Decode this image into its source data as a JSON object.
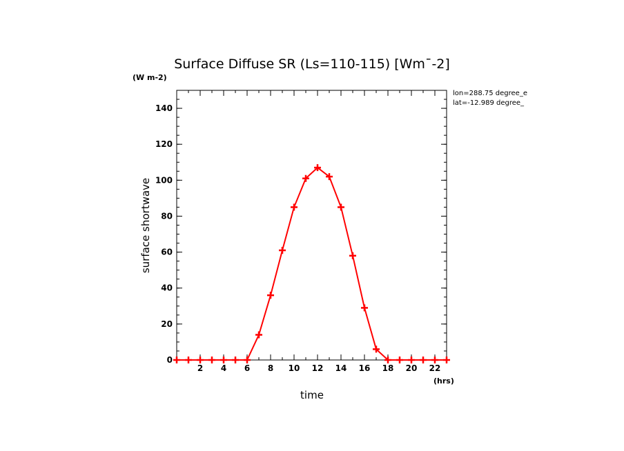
{
  "chart_data": {
    "type": "line",
    "title": "Surface Diffuse SR (Ls=110-115) [Wm¯-2]",
    "ylabel_units": "(W m-2)",
    "ylabel": "surface shortwave",
    "xlabel": "time",
    "xlabel_units": "(hrs)",
    "annotations": [
      "lon=288.75 degree_e",
      "lat=-12.989 degree_"
    ],
    "xlim": [
      0,
      23
    ],
    "ylim": [
      0,
      150
    ],
    "x_ticks": [
      2,
      4,
      6,
      8,
      10,
      12,
      14,
      16,
      18,
      20,
      22
    ],
    "y_ticks": [
      0,
      20,
      40,
      60,
      80,
      100,
      120,
      140
    ],
    "grid": false,
    "series": [
      {
        "color": "#ff0000",
        "marker": "plus",
        "x": [
          0,
          1,
          2,
          3,
          4,
          5,
          6,
          7,
          8,
          9,
          10,
          11,
          12,
          13,
          14,
          15,
          16,
          17,
          18,
          19,
          20,
          21,
          22,
          23
        ],
        "values": [
          0,
          0,
          0,
          0,
          0,
          0,
          0,
          14,
          36,
          61,
          85,
          101,
          107,
          102,
          85,
          58,
          29,
          6,
          0,
          0,
          0,
          0,
          0,
          0
        ]
      }
    ]
  }
}
